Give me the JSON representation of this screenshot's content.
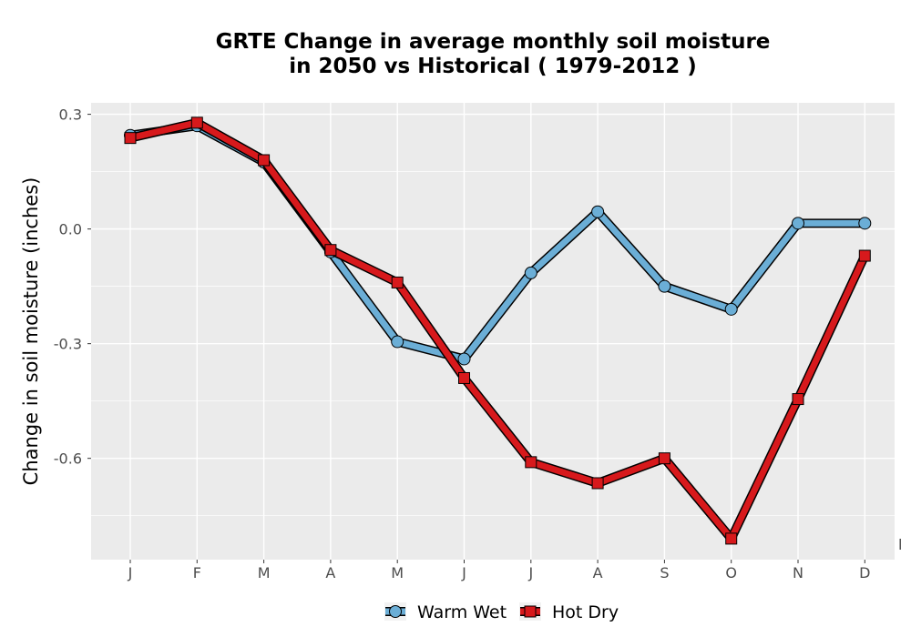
{
  "chart_data": {
    "type": "line",
    "title_lines": [
      "GRTE  Change in average monthly soil moisture",
      "in 2050 vs Historical ( 1979-2012 )"
    ],
    "xlabel": "",
    "ylabel": "Change in soil moisture (inches)",
    "categories": [
      "J",
      "F",
      "M",
      "A",
      "M",
      "J",
      "J",
      "A",
      "S",
      "O",
      "N",
      "D"
    ],
    "yticks": [
      0.3,
      0.0,
      -0.3,
      -0.6
    ],
    "ytick_labels": [
      "0.3",
      "0.0",
      "-0.3",
      "-0.6"
    ],
    "ylim": [
      -0.865,
      0.33
    ],
    "grid": true,
    "legend_position": "bottom",
    "corner_mark": "l",
    "series": [
      {
        "name": "Warm Wet",
        "color": "#6baed6",
        "marker": "circle",
        "values": [
          0.245,
          0.27,
          0.175,
          -0.06,
          -0.295,
          -0.34,
          -0.115,
          0.045,
          -0.15,
          -0.21,
          0.015,
          0.015
        ]
      },
      {
        "name": "Hot Dry",
        "color": "#d7191c",
        "marker": "square",
        "values": [
          0.238,
          0.278,
          0.18,
          -0.055,
          -0.14,
          -0.39,
          -0.61,
          -0.665,
          -0.6,
          -0.81,
          -0.445,
          -0.07
        ]
      }
    ]
  }
}
